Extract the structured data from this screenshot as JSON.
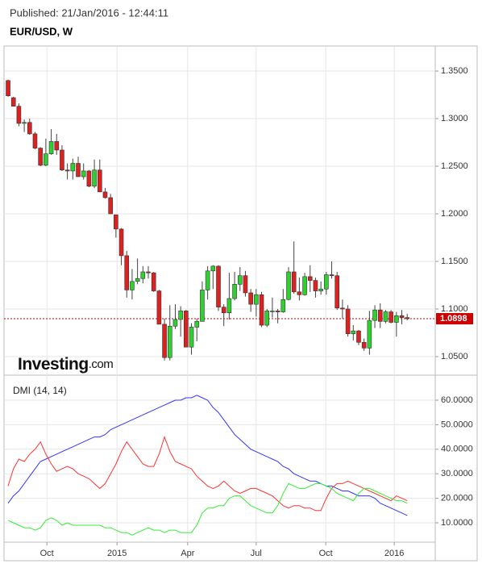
{
  "published": "Published: 21/Jan/2016 - 12:44:11",
  "symbol": "EUR/USD, W",
  "logo_name": "Investing",
  "logo_suffix": ".com",
  "chart_data": [
    {
      "type": "candlestick",
      "up_color": "#2fd12f",
      "down_color": "#dd2020",
      "last_price": 1.0898,
      "last_price_label": "1.0898",
      "last_price_color": "#cc0000",
      "open": [
        1.34,
        1.322,
        1.313,
        1.295,
        1.296,
        1.284,
        1.269,
        1.251,
        1.263,
        1.276,
        1.267,
        1.246,
        1.245,
        1.253,
        1.239,
        1.245,
        1.229,
        1.246,
        1.223,
        1.217,
        1.199,
        1.184,
        1.156,
        1.12,
        1.129,
        1.132,
        1.139,
        1.138,
        1.119,
        1.084,
        1.049,
        1.082,
        1.089,
        1.098,
        1.06,
        1.081,
        1.087,
        1.12,
        1.14,
        1.145,
        1.102,
        1.096,
        1.111,
        1.126,
        1.135,
        1.117,
        1.105,
        1.115,
        1.083,
        1.098,
        1.098,
        1.097,
        1.11,
        1.139,
        1.118,
        1.115,
        1.134,
        1.13,
        1.119,
        1.121,
        1.136,
        1.135,
        1.101,
        1.1,
        1.074,
        1.077,
        1.065,
        1.059,
        1.088,
        1.099,
        1.087,
        1.097,
        1.086,
        1.093,
        1.091
      ],
      "high": [
        1.341,
        1.323,
        1.316,
        1.299,
        1.3,
        1.286,
        1.27,
        1.279,
        1.289,
        1.284,
        1.272,
        1.253,
        1.258,
        1.26,
        1.253,
        1.246,
        1.257,
        1.257,
        1.227,
        1.221,
        1.199,
        1.185,
        1.161,
        1.142,
        1.153,
        1.145,
        1.145,
        1.139,
        1.12,
        1.09,
        1.104,
        1.105,
        1.103,
        1.099,
        1.085,
        1.09,
        1.129,
        1.145,
        1.146,
        1.146,
        1.105,
        1.138,
        1.139,
        1.144,
        1.14,
        1.121,
        1.121,
        1.118,
        1.1,
        1.112,
        1.1,
        1.121,
        1.144,
        1.171,
        1.133,
        1.138,
        1.146,
        1.133,
        1.129,
        1.139,
        1.15,
        1.139,
        1.11,
        1.104,
        1.083,
        1.078,
        1.069,
        1.098,
        1.104,
        1.106,
        1.099,
        1.099,
        1.097,
        1.099,
        1.095
      ],
      "low": [
        1.323,
        1.313,
        1.292,
        1.286,
        1.283,
        1.268,
        1.25,
        1.25,
        1.262,
        1.262,
        1.245,
        1.236,
        1.236,
        1.239,
        1.236,
        1.228,
        1.227,
        1.224,
        1.216,
        1.2,
        1.175,
        1.146,
        1.112,
        1.11,
        1.126,
        1.127,
        1.132,
        1.118,
        1.084,
        1.046,
        1.046,
        1.079,
        1.071,
        1.06,
        1.052,
        1.066,
        1.087,
        1.11,
        1.121,
        1.098,
        1.082,
        1.089,
        1.109,
        1.119,
        1.113,
        1.097,
        1.092,
        1.081,
        1.081,
        1.091,
        1.085,
        1.096,
        1.109,
        1.116,
        1.109,
        1.114,
        1.118,
        1.112,
        1.115,
        1.115,
        1.132,
        1.099,
        1.09,
        1.071,
        1.067,
        1.062,
        1.056,
        1.052,
        1.08,
        1.08,
        1.085,
        1.085,
        1.071,
        1.084,
        1.088
      ],
      "close": [
        1.324,
        1.313,
        1.295,
        1.296,
        1.284,
        1.269,
        1.251,
        1.263,
        1.276,
        1.267,
        1.246,
        1.245,
        1.253,
        1.239,
        1.245,
        1.229,
        1.246,
        1.223,
        1.217,
        1.2,
        1.184,
        1.156,
        1.12,
        1.129,
        1.132,
        1.139,
        1.138,
        1.119,
        1.084,
        1.049,
        1.082,
        1.089,
        1.098,
        1.06,
        1.081,
        1.087,
        1.12,
        1.14,
        1.145,
        1.102,
        1.096,
        1.111,
        1.126,
        1.135,
        1.117,
        1.105,
        1.115,
        1.083,
        1.098,
        1.098,
        1.097,
        1.11,
        1.139,
        1.118,
        1.115,
        1.134,
        1.13,
        1.119,
        1.121,
        1.136,
        1.135,
        1.101,
        1.1,
        1.074,
        1.077,
        1.065,
        1.059,
        1.088,
        1.099,
        1.087,
        1.097,
        1.086,
        1.093,
        1.091,
        1.0898
      ],
      "xlim": [
        -0.75,
        79.2
      ],
      "ylim": [
        1.0305,
        1.3763
      ],
      "yticks": [
        {
          "value": 1.05,
          "label": "1.0500"
        },
        {
          "value": 1.1,
          "label": "1.1000"
        },
        {
          "value": 1.15,
          "label": "1.1500"
        },
        {
          "value": 1.2,
          "label": "1.2000"
        },
        {
          "value": 1.25,
          "label": "1.2500"
        },
        {
          "value": 1.3,
          "label": "1.3000"
        },
        {
          "value": 1.35,
          "label": "1.3500"
        }
      ],
      "grid": true
    },
    {
      "type": "line",
      "title": "DMI (14, 14)",
      "series": [
        {
          "color": "#3333ff",
          "values": [
            18,
            21,
            23,
            26,
            29,
            32,
            35,
            36,
            37,
            38,
            39,
            40,
            41,
            42,
            43,
            44,
            45,
            45,
            46,
            48,
            49,
            50,
            51,
            52,
            53,
            54,
            55,
            56,
            57,
            58,
            59,
            60,
            60,
            61,
            61,
            62,
            61,
            60,
            57,
            55,
            52,
            49,
            46,
            44,
            42,
            40,
            39,
            38,
            37,
            36,
            35,
            33,
            32,
            30,
            29,
            28,
            27,
            27,
            26,
            25,
            25,
            24,
            23,
            23,
            22,
            21,
            21,
            21,
            20,
            18,
            17,
            16,
            15,
            14,
            13
          ]
        },
        {
          "color": "#ff3333",
          "values": [
            25,
            32,
            36,
            35,
            38,
            40,
            43,
            38,
            34,
            31,
            32,
            33,
            32,
            30,
            29,
            28,
            26,
            24,
            26,
            30,
            34,
            39,
            43,
            40,
            37,
            34,
            33,
            33,
            38,
            45,
            39,
            35,
            34,
            33,
            32,
            29,
            27,
            25,
            24,
            25,
            27,
            25,
            23,
            22,
            23,
            24,
            24,
            23,
            22,
            21,
            19,
            17,
            16,
            17,
            17,
            16,
            16,
            15,
            15,
            20,
            24,
            26,
            26,
            27,
            26,
            25,
            24,
            23,
            22,
            21,
            20,
            19,
            21,
            20,
            19
          ]
        },
        {
          "color": "#33ee33",
          "values": [
            11,
            10,
            9,
            8,
            8,
            7,
            8,
            11,
            12,
            11,
            9,
            10,
            9,
            9,
            9,
            9,
            9,
            9,
            8,
            8,
            7,
            6,
            6,
            5,
            6,
            7,
            8,
            7,
            7,
            6,
            7,
            7,
            6,
            6,
            6,
            9,
            14,
            16,
            16,
            17,
            17,
            20,
            21,
            21,
            19,
            17,
            16,
            15,
            14,
            14,
            17,
            22,
            26,
            25,
            24,
            24,
            25,
            26,
            26,
            25,
            24,
            22,
            21,
            20,
            19,
            22,
            24,
            24,
            23,
            22,
            21,
            20,
            19,
            19,
            18
          ]
        }
      ],
      "xlim": [
        -0.75,
        79.2
      ],
      "xticks": [
        {
          "value": 7.2,
          "label": "Oct"
        },
        {
          "value": 20.2,
          "label": "2015"
        },
        {
          "value": 33.3,
          "label": "Apr"
        },
        {
          "value": 46.0,
          "label": "Jul"
        },
        {
          "value": 58.9,
          "label": "Oct"
        },
        {
          "value": 71.6,
          "label": "2016"
        }
      ],
      "ylim": [
        2.1,
        70.2
      ],
      "yticks": [
        {
          "value": 10,
          "label": "10.0000"
        },
        {
          "value": 20,
          "label": "20.0000"
        },
        {
          "value": 30,
          "label": "30.0000"
        },
        {
          "value": 40,
          "label": "40.0000"
        },
        {
          "value": 50,
          "label": "50.0000"
        },
        {
          "value": 60,
          "label": "60.0000"
        }
      ],
      "grid": true
    }
  ]
}
